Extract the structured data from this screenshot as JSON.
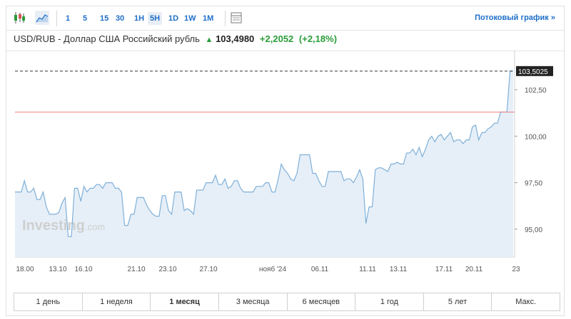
{
  "toolbar": {
    "intervals": [
      {
        "label": "1",
        "active": false
      },
      {
        "label": "5",
        "active": false
      },
      {
        "label": "15",
        "active": false
      },
      {
        "label": "30",
        "active": false
      },
      {
        "label": "1H",
        "active": false
      },
      {
        "label": "5H",
        "active": true
      },
      {
        "label": "1D",
        "active": false
      },
      {
        "label": "1W",
        "active": false
      },
      {
        "label": "1M",
        "active": false
      }
    ],
    "stream_link": "Потоковый график",
    "stream_link_arrow": "»"
  },
  "header": {
    "instrument": "USD/RUB - Доллар США Российский рубль",
    "arrow": "▲",
    "price": "103,4980",
    "change": "+2,2052",
    "change_pct": "(+2,18%)"
  },
  "watermark": {
    "brand": "Investing",
    "suffix": ".com"
  },
  "colors": {
    "accent": "#1e6ec9",
    "up": "#2a9d3a",
    "line": "#7fb0d8",
    "area": "#e6eff8",
    "ref_line": "#f08080",
    "last_label_bg": "#222222"
  },
  "chart_data": {
    "type": "area",
    "pair": "USD/RUB",
    "ylim": [
      93.5,
      104.3
    ],
    "y_ticks": [
      "95,00",
      "97,50",
      "100,00",
      "102,50"
    ],
    "y_tick_values": [
      95.0,
      97.5,
      100.0,
      102.5
    ],
    "x_tick_labels": [
      "18.00",
      "13.10",
      "16.10",
      "21.10",
      "23.10",
      "27.10",
      "нояб '24",
      "06.11",
      "11.11",
      "13.11",
      "17.11",
      "20.11",
      "23"
    ],
    "last_value": 103.5025,
    "last_value_label": "103,5025",
    "reference_value": 101.3,
    "grid": false,
    "values": [
      97.0,
      97.0,
      97.0,
      97.6,
      97.0,
      97.0,
      97.2,
      96.6,
      96.6,
      97.0,
      96.2,
      95.8,
      95.8,
      95.8,
      95.9,
      96.4,
      96.7,
      94.6,
      94.6,
      97.2,
      97.2,
      96.5,
      97.3,
      97.0,
      97.2,
      97.2,
      97.4,
      97.4,
      97.2,
      97.5,
      97.5,
      97.5,
      97.2,
      97.2,
      97.0,
      95.2,
      95.2,
      95.8,
      95.8,
      96.7,
      96.7,
      96.7,
      96.3,
      96.0,
      95.8,
      95.7,
      95.7,
      96.8,
      96.8,
      96.0,
      95.8,
      97.0,
      97.0,
      97.0,
      96.0,
      96.1,
      96.0,
      95.8,
      97.1,
      97.1,
      97.1,
      97.5,
      97.5,
      97.5,
      97.9,
      97.4,
      97.4,
      97.7,
      97.2,
      97.3,
      97.6,
      97.6,
      97.2,
      97.0,
      97.0,
      97.0,
      97.0,
      97.3,
      97.3,
      97.3,
      97.5,
      97.5,
      97.0,
      97.0,
      97.7,
      98.5,
      98.2,
      98.0,
      97.7,
      97.6,
      98.0,
      99.0,
      99.0,
      99.0,
      99.0,
      98.0,
      98.0,
      97.6,
      97.3,
      97.3,
      98.1,
      98.1,
      98.1,
      98.1,
      98.1,
      97.6,
      97.7,
      97.7,
      97.5,
      97.8,
      98.2,
      97.7,
      95.3,
      96.2,
      96.2,
      98.2,
      98.3,
      98.3,
      98.2,
      98.1,
      98.5,
      98.5,
      98.6,
      98.5,
      98.5,
      99.1,
      99.1,
      99.3,
      99.0,
      99.4,
      98.9,
      99.3,
      99.8,
      100.0,
      99.7,
      100.0,
      100.1,
      99.8,
      100.0,
      100.2,
      99.7,
      99.8,
      99.8,
      99.6,
      99.8,
      99.8,
      100.5,
      100.6,
      99.8,
      100.2,
      100.2,
      100.4,
      100.5,
      100.7,
      100.7,
      101.3,
      101.3,
      101.3,
      103.5,
      103.5
    ]
  },
  "periods": [
    {
      "label": "1 день",
      "active": false
    },
    {
      "label": "1 неделя",
      "active": false
    },
    {
      "label": "1 месяц",
      "active": true
    },
    {
      "label": "3 месяца",
      "active": false
    },
    {
      "label": "6 месяцев",
      "active": false
    },
    {
      "label": "1 год",
      "active": false
    },
    {
      "label": "5 лет",
      "active": false
    },
    {
      "label": "Макс.",
      "active": false
    }
  ]
}
